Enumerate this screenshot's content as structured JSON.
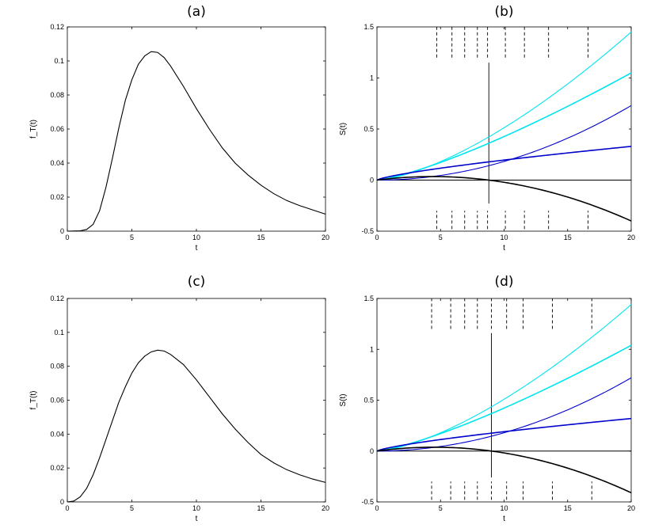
{
  "chart_data": [
    {
      "panel": "a",
      "type": "line",
      "title": "(a)",
      "xlabel": "t",
      "ylabel": "f_T(t)",
      "xlim": [
        0,
        20
      ],
      "ylim": [
        0,
        0.12
      ],
      "xticks": [
        0,
        5,
        10,
        15,
        20
      ],
      "xtick_labels": [
        "0",
        "5",
        "10",
        "15",
        "20"
      ],
      "yticks": [
        0,
        0.02,
        0.04,
        0.06,
        0.08,
        0.1,
        0.12
      ],
      "ytick_labels": [
        "0",
        "0.02",
        "0.04",
        "0.06",
        "0.08",
        "0.1",
        "0.12"
      ],
      "series": [
        {
          "name": "density",
          "color": "#000000",
          "x": [
            0,
            1,
            1.5,
            2,
            2.5,
            3,
            3.5,
            4,
            4.5,
            5,
            5.5,
            6,
            6.5,
            7,
            7.5,
            8,
            9,
            10,
            11,
            12,
            13,
            14,
            15,
            16,
            17,
            18,
            19,
            20
          ],
          "y": [
            0,
            0.0002,
            0.001,
            0.004,
            0.012,
            0.026,
            0.043,
            0.061,
            0.077,
            0.089,
            0.098,
            0.103,
            0.1055,
            0.105,
            0.102,
            0.097,
            0.085,
            0.072,
            0.06,
            0.049,
            0.04,
            0.033,
            0.027,
            0.022,
            0.018,
            0.015,
            0.0125,
            0.01
          ]
        }
      ]
    },
    {
      "panel": "b",
      "type": "line",
      "title": "(b)",
      "xlabel": "t",
      "ylabel": "S(t)",
      "xlim": [
        0,
        20
      ],
      "ylim": [
        -0.5,
        1.5
      ],
      "xticks": [
        0,
        5,
        10,
        15,
        20
      ],
      "xtick_labels": [
        "0",
        "5",
        "10",
        "15",
        "20"
      ],
      "yticks": [
        -0.5,
        0,
        0.5,
        1,
        1.5
      ],
      "ytick_labels": [
        "-0.5",
        "0",
        "0.5",
        "1",
        "1.5"
      ],
      "series": [
        {
          "name": "upper-cyan",
          "color": "#00e5ee",
          "x": [
            0,
            20
          ],
          "y": [
            0,
            1.45
          ],
          "exponent": 1.5
        },
        {
          "name": "cyan",
          "color": "#00e5ee",
          "x": [
            0,
            20
          ],
          "y": [
            0,
            1.05
          ],
          "exponent": 1.3
        },
        {
          "name": "blue",
          "color": "#0000cc",
          "x": [
            0,
            20
          ],
          "y": [
            0,
            0.73
          ],
          "exponent": 2.0
        },
        {
          "name": "blue-thick",
          "color": "#0000cc",
          "x": [
            0,
            20
          ],
          "y": [
            0,
            0.33
          ],
          "exponent": 0.75
        },
        {
          "name": "black",
          "color": "#000000",
          "x": [
            0,
            4.4,
            8.8,
            20
          ],
          "y": [
            0,
            0.048,
            0,
            -0.4
          ]
        }
      ],
      "hline": 0,
      "vline": {
        "x": 8.8,
        "ymin": -0.23,
        "ymax": 1.15
      },
      "dashed_ticks_x": [
        4.7,
        5.9,
        6.9,
        7.9,
        8.7,
        10.1,
        11.6,
        13.5,
        16.6
      ],
      "dashed_ticks_top": [
        1.2,
        1.5
      ],
      "dashed_ticks_bottom": [
        -0.48,
        -0.3
      ]
    },
    {
      "panel": "c",
      "type": "line",
      "title": "(c)",
      "xlabel": "t",
      "ylabel": "f_T(t)",
      "xlim": [
        0,
        20
      ],
      "ylim": [
        0,
        0.12
      ],
      "xticks": [
        0,
        5,
        10,
        15,
        20
      ],
      "xtick_labels": [
        "0",
        "5",
        "10",
        "15",
        "20"
      ],
      "yticks": [
        0,
        0.02,
        0.04,
        0.06,
        0.08,
        0.1,
        0.12
      ],
      "ytick_labels": [
        "0",
        "0.02",
        "0.04",
        "0.06",
        "0.08",
        "0.1",
        "0.12"
      ],
      "series": [
        {
          "name": "density",
          "color": "#000000",
          "x": [
            0,
            0.5,
            1,
            1.5,
            2,
            2.5,
            3,
            3.5,
            4,
            4.5,
            5,
            5.5,
            6,
            6.5,
            7,
            7.5,
            8,
            9,
            10,
            11,
            12,
            13,
            14,
            15,
            16,
            17,
            18,
            19,
            20
          ],
          "y": [
            0,
            0.0005,
            0.003,
            0.008,
            0.016,
            0.026,
            0.037,
            0.048,
            0.059,
            0.068,
            0.076,
            0.082,
            0.086,
            0.0885,
            0.0895,
            0.089,
            0.087,
            0.081,
            0.072,
            0.062,
            0.052,
            0.043,
            0.035,
            0.028,
            0.023,
            0.019,
            0.016,
            0.0135,
            0.0115
          ]
        }
      ]
    },
    {
      "panel": "d",
      "type": "line",
      "title": "(d)",
      "xlabel": "t",
      "ylabel": "S(t)",
      "xlim": [
        0,
        20
      ],
      "ylim": [
        -0.5,
        1.5
      ],
      "xticks": [
        0,
        5,
        10,
        15,
        20
      ],
      "xtick_labels": [
        "0",
        "5",
        "10",
        "15",
        "20"
      ],
      "yticks": [
        -0.5,
        0,
        0.5,
        1,
        1.5
      ],
      "ytick_labels": [
        "-0.5",
        "0",
        "0.5",
        "1",
        "1.5"
      ],
      "series": [
        {
          "name": "upper-cyan",
          "color": "#00e5ee",
          "x": [
            0,
            20
          ],
          "y": [
            0,
            1.44
          ],
          "exponent": 1.5
        },
        {
          "name": "cyan",
          "color": "#00e5ee",
          "x": [
            0,
            20
          ],
          "y": [
            0,
            1.04
          ],
          "exponent": 1.3
        },
        {
          "name": "blue",
          "color": "#0000cc",
          "x": [
            0,
            20
          ],
          "y": [
            0,
            0.72
          ],
          "exponent": 2.0
        },
        {
          "name": "blue-thick",
          "color": "#0000cc",
          "x": [
            0,
            20
          ],
          "y": [
            0,
            0.32
          ],
          "exponent": 0.75
        },
        {
          "name": "black",
          "color": "#000000",
          "x": [
            0,
            4.5,
            9,
            20
          ],
          "y": [
            0,
            0.048,
            0,
            -0.41
          ]
        }
      ],
      "hline": 0,
      "vline": {
        "x": 9.0,
        "ymin": -0.26,
        "ymax": 1.16
      },
      "dashed_ticks_x": [
        4.3,
        5.8,
        6.9,
        7.9,
        9.0,
        10.2,
        11.5,
        13.8,
        16.9
      ],
      "dashed_ticks_top": [
        1.2,
        1.5
      ],
      "dashed_ticks_bottom": [
        -0.48,
        -0.3
      ]
    }
  ]
}
